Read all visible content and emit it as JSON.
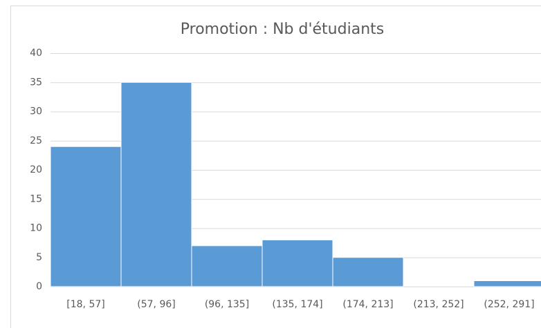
{
  "chart_data": {
    "type": "bar",
    "title": "Promotion : Nb d'étudiants",
    "categories": [
      "[18, 57]",
      "(57, 96]",
      "(96, 135]",
      "(135, 174]",
      "(174, 213]",
      "(213, 252]",
      "(252, 291]"
    ],
    "values": [
      24,
      35,
      7,
      8,
      5,
      0,
      1
    ],
    "color": "#5b9bd5",
    "ylim": [
      0,
      40
    ],
    "yticks": [
      0,
      5,
      10,
      15,
      20,
      25,
      30,
      35,
      40
    ],
    "grid": true
  }
}
